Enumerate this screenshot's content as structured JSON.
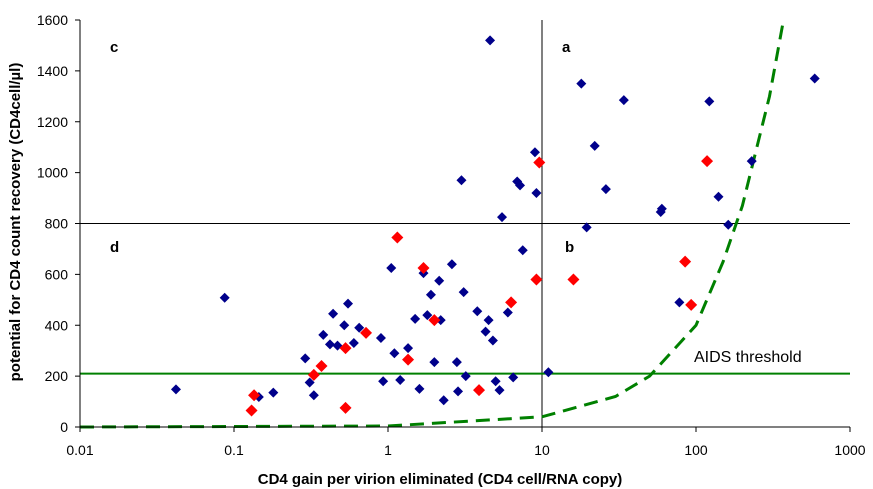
{
  "chart_data": {
    "type": "scatter",
    "title": "",
    "xlabel": "CD4 gain per virion eliminated (CD4 cell/RNA copy)",
    "ylabel": "potential for CD4 count recovery (CD4cell/µl)",
    "xscale": "log",
    "xlim": [
      0.01,
      1000
    ],
    "ylim": [
      0,
      1600
    ],
    "x_ticks": [
      0.01,
      0.1,
      1,
      10,
      100,
      1000
    ],
    "x_tick_labels": [
      "0.01",
      "0.1",
      "1",
      "10",
      "100",
      "1000"
    ],
    "y_ticks": [
      0,
      200,
      400,
      600,
      800,
      1000,
      1200,
      1400,
      1600
    ],
    "y_tick_labels": [
      "0",
      "200",
      "400",
      "600",
      "800",
      "1000",
      "1200",
      "1400",
      "1600"
    ],
    "grid": false,
    "legend": "none",
    "colors": {
      "blue_points": "#00008B",
      "red_points": "#FF0000",
      "threshold_line": "#008000",
      "curve": "#008000",
      "reference_lines": "#000000"
    },
    "series": [
      {
        "marker": "diamond",
        "color": "#00008B",
        "points": [
          [
            0.042,
            148
          ],
          [
            0.087,
            508
          ],
          [
            0.145,
            118
          ],
          [
            0.18,
            135
          ],
          [
            0.29,
            270
          ],
          [
            0.31,
            175
          ],
          [
            0.33,
            125
          ],
          [
            0.38,
            362
          ],
          [
            0.42,
            325
          ],
          [
            0.44,
            445
          ],
          [
            0.47,
            320
          ],
          [
            0.52,
            400
          ],
          [
            0.55,
            485
          ],
          [
            0.6,
            330
          ],
          [
            0.65,
            390
          ],
          [
            0.9,
            350
          ],
          [
            0.93,
            180
          ],
          [
            1.05,
            625
          ],
          [
            1.1,
            290
          ],
          [
            1.2,
            185
          ],
          [
            1.35,
            310
          ],
          [
            1.5,
            425
          ],
          [
            1.6,
            150
          ],
          [
            1.7,
            605
          ],
          [
            1.8,
            440
          ],
          [
            1.9,
            520
          ],
          [
            2.0,
            255
          ],
          [
            2.15,
            575
          ],
          [
            2.2,
            420
          ],
          [
            2.3,
            105
          ],
          [
            2.6,
            640
          ],
          [
            2.8,
            255
          ],
          [
            2.85,
            140
          ],
          [
            3.0,
            970
          ],
          [
            3.1,
            530
          ],
          [
            3.2,
            200
          ],
          [
            3.8,
            455
          ],
          [
            4.3,
            375
          ],
          [
            4.5,
            420
          ],
          [
            4.6,
            1520
          ],
          [
            4.8,
            340
          ],
          [
            5.0,
            180
          ],
          [
            5.3,
            145
          ],
          [
            5.5,
            825
          ],
          [
            6.0,
            450
          ],
          [
            6.5,
            195
          ],
          [
            6.9,
            965
          ],
          [
            7.2,
            950
          ],
          [
            7.5,
            695
          ],
          [
            9.0,
            1080
          ],
          [
            9.2,
            920
          ],
          [
            11.0,
            215
          ],
          [
            18.0,
            1350
          ],
          [
            19.5,
            785
          ],
          [
            22.0,
            1105
          ],
          [
            26.0,
            935
          ],
          [
            34.0,
            1285
          ],
          [
            59.0,
            845
          ],
          [
            60.0,
            858
          ],
          [
            78.0,
            490
          ],
          [
            122.0,
            1280
          ],
          [
            140.0,
            905
          ],
          [
            162.0,
            795
          ],
          [
            230.0,
            1045
          ],
          [
            590.0,
            1370
          ]
        ]
      },
      {
        "marker": "diamond",
        "color": "#FF0000",
        "points": [
          [
            0.13,
            65
          ],
          [
            0.135,
            125
          ],
          [
            0.33,
            205
          ],
          [
            0.37,
            240
          ],
          [
            0.53,
            75
          ],
          [
            0.53,
            310
          ],
          [
            0.72,
            370
          ],
          [
            1.15,
            745
          ],
          [
            1.35,
            265
          ],
          [
            1.7,
            625
          ],
          [
            2.0,
            420
          ],
          [
            3.9,
            145
          ],
          [
            6.3,
            490
          ],
          [
            9.2,
            580
          ],
          [
            9.6,
            1040
          ],
          [
            16.0,
            580
          ],
          [
            85.0,
            650
          ],
          [
            93.0,
            480
          ],
          [
            118.0,
            1045
          ]
        ]
      }
    ],
    "reference_lines": [
      {
        "orientation": "vertical",
        "x": 10
      },
      {
        "orientation": "horizontal",
        "y": 800
      },
      {
        "orientation": "horizontal",
        "y": 210,
        "label": "AIDS threshold"
      }
    ],
    "curve": {
      "style": "dashed",
      "description_points": [
        [
          0.01,
          0
        ],
        [
          1,
          4
        ],
        [
          10,
          40
        ],
        [
          30,
          120
        ],
        [
          50,
          200
        ],
        [
          100,
          400
        ],
        [
          150,
          650
        ],
        [
          200,
          870
        ],
        [
          300,
          1300
        ],
        [
          370,
          1600
        ]
      ]
    },
    "quadrant_labels": [
      "a",
      "b",
      "c",
      "d"
    ],
    "threshold_label": "AIDS threshold"
  }
}
